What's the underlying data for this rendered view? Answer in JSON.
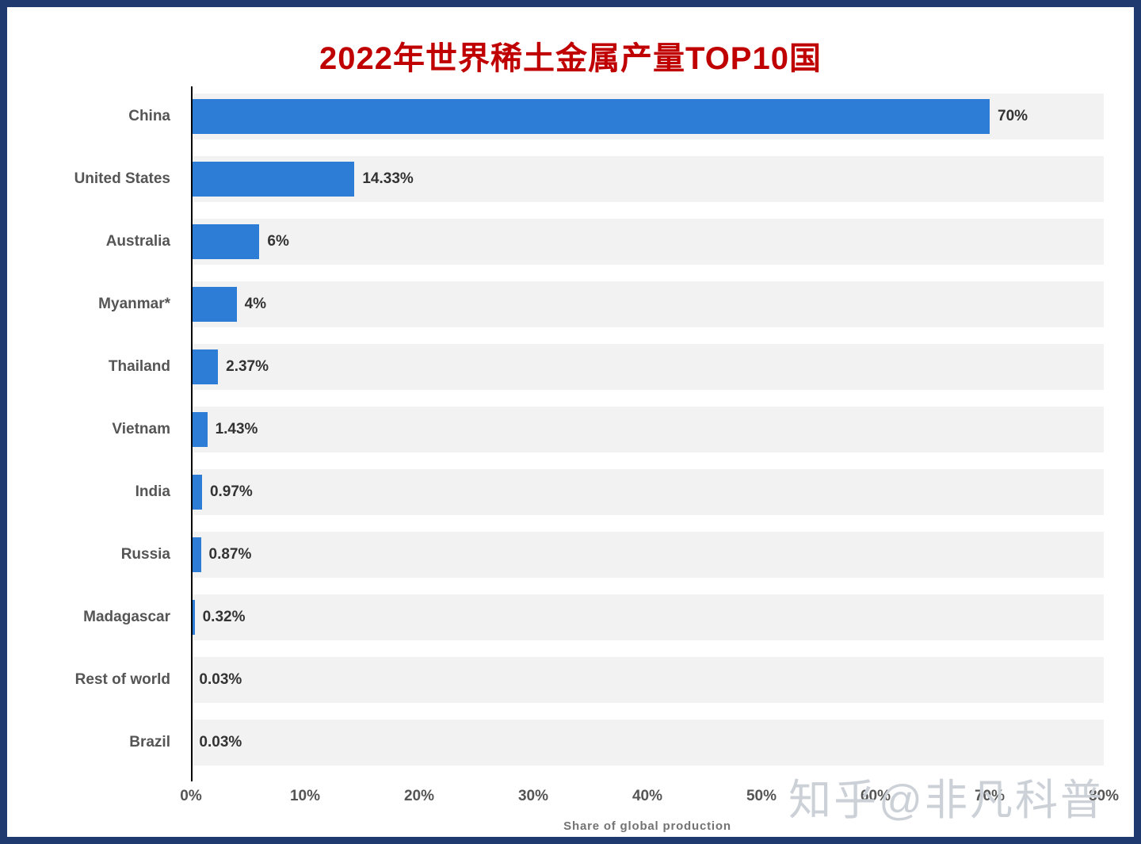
{
  "title": "2022年世界稀土金属产量TOP10国",
  "frame": {
    "border_color": "#1f3a6e"
  },
  "chart_data": {
    "type": "bar",
    "orientation": "horizontal",
    "title": "2022年世界稀土金属产量TOP10国",
    "categories": [
      "China",
      "United States",
      "Australia",
      "Myanmar*",
      "Thailand",
      "Vietnam",
      "India",
      "Russia",
      "Madagascar",
      "Rest of world",
      "Brazil"
    ],
    "values": [
      70,
      14.33,
      6,
      4,
      2.37,
      1.43,
      0.97,
      0.87,
      0.32,
      0.03,
      0.03
    ],
    "value_labels": [
      "70%",
      "14.33%",
      "6%",
      "4%",
      "2.37%",
      "1.43%",
      "0.97%",
      "0.87%",
      "0.32%",
      "0.03%",
      "0.03%"
    ],
    "xlabel": "Share of global production",
    "ylabel": "",
    "xlim": [
      0,
      80
    ],
    "xticks": [
      "0%",
      "10%",
      "20%",
      "30%",
      "40%",
      "50%",
      "60%",
      "70%",
      "80%"
    ],
    "bar_color": "#2d7dd6",
    "stripe_color": "#f2f2f2",
    "grid": false,
    "legend": false
  },
  "watermark": "知乎@非凡科普"
}
